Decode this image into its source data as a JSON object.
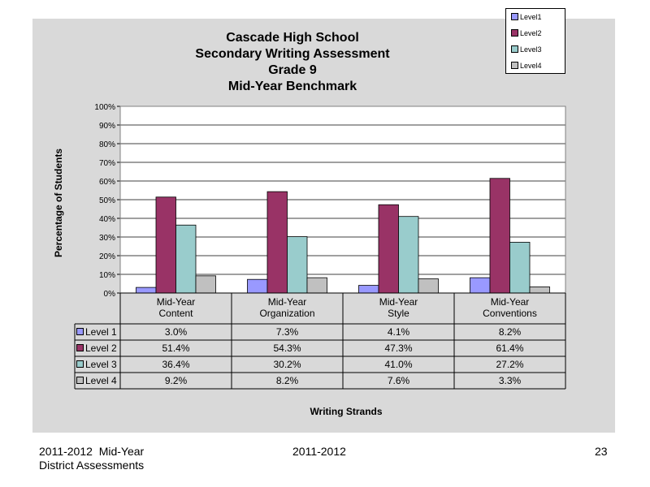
{
  "chart_data": {
    "type": "bar",
    "title": [
      "Cascade High School",
      "Secondary Writing Assessment",
      "Grade 9",
      "Mid-Year Benchmark"
    ],
    "xlabel": "Writing Strands",
    "ylabel": "Percentage of Students",
    "ylim": [
      0,
      100
    ],
    "y_ticks": [
      "0%",
      "10%",
      "20%",
      "30%",
      "40%",
      "50%",
      "60%",
      "70%",
      "80%",
      "90%",
      "100%"
    ],
    "categories": [
      [
        "Mid-Year",
        "Content"
      ],
      [
        "Mid-Year",
        "Organization"
      ],
      [
        "Mid-Year",
        "Style"
      ],
      [
        "Mid-Year",
        "Conventions"
      ]
    ],
    "series": [
      {
        "name": "Level 1",
        "legend_label": "Level1",
        "color": "#9999ff",
        "values": [
          3.0,
          7.3,
          4.1,
          8.2
        ],
        "labels": [
          "3.0%",
          "7.3%",
          "4.1%",
          "8.2%"
        ]
      },
      {
        "name": "Level 2",
        "legend_label": "Level2",
        "color": "#993366",
        "values": [
          51.4,
          54.3,
          47.3,
          61.4
        ],
        "labels": [
          "51.4%",
          "54.3%",
          "47.3%",
          "61.4%"
        ]
      },
      {
        "name": "Level 3",
        "legend_label": "Level3",
        "color": "#99cccc",
        "values": [
          36.4,
          30.2,
          41.0,
          27.2
        ],
        "labels": [
          "36.4%",
          "30.2%",
          "41.0%",
          "27.2%"
        ]
      },
      {
        "name": "Level 4",
        "legend_label": "Level4",
        "color": "#c0c0c0",
        "values": [
          9.2,
          8.2,
          7.6,
          3.3
        ],
        "labels": [
          "9.2%",
          "8.2%",
          "7.6%",
          "3.3%"
        ]
      }
    ],
    "grid": true,
    "legend": "top-right",
    "data_table": true
  },
  "footer": {
    "left_line1": "2011-2012  Mid-Year",
    "left_line2": "District Assessments",
    "center": "2011-2012",
    "page_number": "23"
  }
}
